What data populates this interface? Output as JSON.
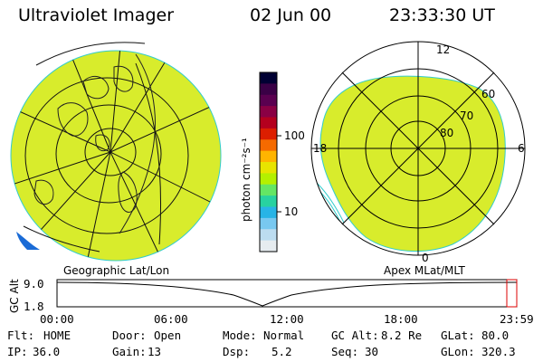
{
  "header": {
    "title": "Ultraviolet Imager",
    "date": "02 Jun 00",
    "time": "23:33:30 UT"
  },
  "colorbar": {
    "unit_label": "photon cm⁻²s⁻¹",
    "ticks": [
      "100",
      "10"
    ],
    "colors": [
      "#000033",
      "#3a0046",
      "#5a0050",
      "#8a0044",
      "#b4001e",
      "#dc1e00",
      "#f56a00",
      "#ffb400",
      "#e8e400",
      "#b4f000",
      "#64e664",
      "#28d2a0",
      "#28b4e6",
      "#78c8f0",
      "#bcdcf0",
      "#e6ecf0"
    ]
  },
  "left_panel": {
    "caption": "Geographic Lat/Lon",
    "fill_color": "#d8ec2c"
  },
  "right_panel": {
    "caption": "Apex MLat/MLT",
    "fill_color": "#d8ec2c",
    "mlt_labels": {
      "top": "12",
      "left": "18",
      "right": "6",
      "bottom": "0"
    },
    "lat_labels": [
      "60",
      "70",
      "80"
    ]
  },
  "altitude_plot": {
    "y_label": "GC Alt",
    "y_ticks": [
      "9.0",
      "1.8"
    ],
    "x_ticks": [
      "00:00",
      "06:00",
      "12:00",
      "18:00",
      "23:59"
    ]
  },
  "status": {
    "row1": [
      {
        "k": "Flt:",
        "v": "HOME"
      },
      {
        "k": "Door:",
        "v": "Open"
      },
      {
        "k": "Mode:",
        "v": "Normal"
      },
      {
        "k": "GC Alt:",
        "v": "8.2 Re"
      },
      {
        "k": "GLat:",
        "v": "80.0"
      }
    ],
    "row2": [
      {
        "k": "IP:",
        "v": "36.0"
      },
      {
        "k": "Gain:",
        "v": "13"
      },
      {
        "k": "Dsp:",
        "v": "5.2"
      },
      {
        "k": "Seq:",
        "v": "30"
      },
      {
        "k": "GLon:",
        "v": "320.3"
      }
    ]
  }
}
